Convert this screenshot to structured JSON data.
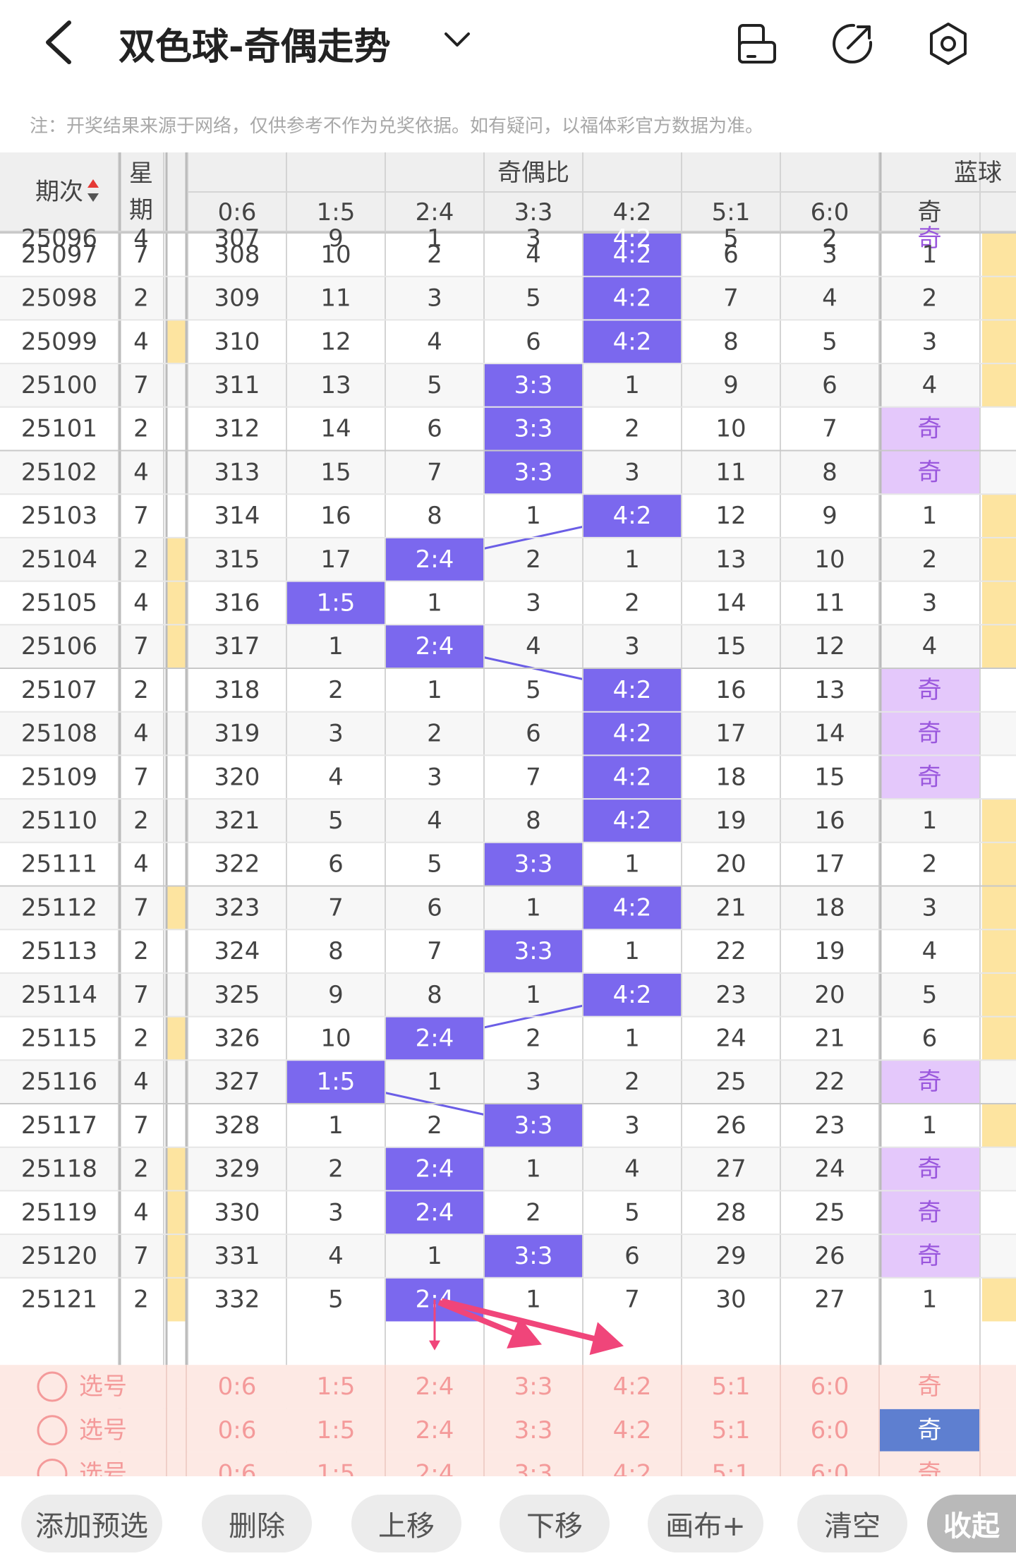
{
  "header": {
    "title": "双色球-奇偶走势",
    "icons": [
      "chevron-left-icon",
      "chevron-down-icon",
      "phone-rotate-icon",
      "share-icon",
      "settings-hexagon-icon"
    ]
  },
  "note": "注：开奖结果来源于网络，仅供参考不作为兑奖依据。如有疑问，以福体彩官方数据为准。",
  "table": {
    "col_issue": "期次",
    "col_week": [
      "星",
      "期"
    ],
    "group_ratio": "奇偶比",
    "group_blue": "蓝球",
    "ratio_cols": [
      "0:6",
      "1:5",
      "2:4",
      "3:3",
      "4:2",
      "5:1",
      "6:0"
    ],
    "blue_cols": [
      "奇"
    ],
    "rows": [
      {
        "issue": "25096",
        "week": "4",
        "cells": [
          "307",
          "9",
          "1",
          "3",
          "4:2",
          "5",
          "2"
        ],
        "hit": 4,
        "blue": "奇",
        "blue_hit": true
      },
      {
        "issue": "25097",
        "week": "7",
        "cells": [
          "308",
          "10",
          "2",
          "4",
          "4:2",
          "6",
          "3"
        ],
        "hit": 4,
        "blue": "1",
        "blue_hit": false
      },
      {
        "issue": "25098",
        "week": "2",
        "cells": [
          "309",
          "11",
          "3",
          "5",
          "4:2",
          "7",
          "4"
        ],
        "hit": 4,
        "blue": "2",
        "blue_hit": false
      },
      {
        "issue": "25099",
        "week": "4",
        "cells": [
          "310",
          "12",
          "4",
          "6",
          "4:2",
          "8",
          "5"
        ],
        "hit": 4,
        "blue": "3",
        "blue_hit": false
      },
      {
        "issue": "25100",
        "week": "7",
        "cells": [
          "311",
          "13",
          "5",
          "3:3",
          "1",
          "9",
          "6"
        ],
        "hit": 3,
        "blue": "4",
        "blue_hit": false
      },
      {
        "issue": "25101",
        "week": "2",
        "cells": [
          "312",
          "14",
          "6",
          "3:3",
          "2",
          "10",
          "7"
        ],
        "hit": 3,
        "blue": "奇",
        "blue_hit": true
      },
      {
        "issue": "25102",
        "week": "4",
        "cells": [
          "313",
          "15",
          "7",
          "3:3",
          "3",
          "11",
          "8"
        ],
        "hit": 3,
        "blue": "奇",
        "blue_hit": true
      },
      {
        "issue": "25103",
        "week": "7",
        "cells": [
          "314",
          "16",
          "8",
          "1",
          "4:2",
          "12",
          "9"
        ],
        "hit": 4,
        "blue": "1",
        "blue_hit": false
      },
      {
        "issue": "25104",
        "week": "2",
        "cells": [
          "315",
          "17",
          "2:4",
          "2",
          "1",
          "13",
          "10"
        ],
        "hit": 2,
        "blue": "2",
        "blue_hit": false
      },
      {
        "issue": "25105",
        "week": "4",
        "cells": [
          "316",
          "1:5",
          "1",
          "3",
          "2",
          "14",
          "11"
        ],
        "hit": 1,
        "blue": "3",
        "blue_hit": false
      },
      {
        "issue": "25106",
        "week": "7",
        "cells": [
          "317",
          "1",
          "2:4",
          "4",
          "3",
          "15",
          "12"
        ],
        "hit": 2,
        "blue": "4",
        "blue_hit": false
      },
      {
        "issue": "25107",
        "week": "2",
        "cells": [
          "318",
          "2",
          "1",
          "5",
          "4:2",
          "16",
          "13"
        ],
        "hit": 4,
        "blue": "奇",
        "blue_hit": true
      },
      {
        "issue": "25108",
        "week": "4",
        "cells": [
          "319",
          "3",
          "2",
          "6",
          "4:2",
          "17",
          "14"
        ],
        "hit": 4,
        "blue": "奇",
        "blue_hit": true
      },
      {
        "issue": "25109",
        "week": "7",
        "cells": [
          "320",
          "4",
          "3",
          "7",
          "4:2",
          "18",
          "15"
        ],
        "hit": 4,
        "blue": "奇",
        "blue_hit": true
      },
      {
        "issue": "25110",
        "week": "2",
        "cells": [
          "321",
          "5",
          "4",
          "8",
          "4:2",
          "19",
          "16"
        ],
        "hit": 4,
        "blue": "1",
        "blue_hit": false
      },
      {
        "issue": "25111",
        "week": "4",
        "cells": [
          "322",
          "6",
          "5",
          "3:3",
          "1",
          "20",
          "17"
        ],
        "hit": 3,
        "blue": "2",
        "blue_hit": false
      },
      {
        "issue": "25112",
        "week": "7",
        "cells": [
          "323",
          "7",
          "6",
          "1",
          "4:2",
          "21",
          "18"
        ],
        "hit": 4,
        "blue": "3",
        "blue_hit": false
      },
      {
        "issue": "25113",
        "week": "2",
        "cells": [
          "324",
          "8",
          "7",
          "3:3",
          "1",
          "22",
          "19"
        ],
        "hit": 3,
        "blue": "4",
        "blue_hit": false
      },
      {
        "issue": "25114",
        "week": "7",
        "cells": [
          "325",
          "9",
          "8",
          "1",
          "4:2",
          "23",
          "20"
        ],
        "hit": 4,
        "blue": "5",
        "blue_hit": false
      },
      {
        "issue": "25115",
        "week": "2",
        "cells": [
          "326",
          "10",
          "2:4",
          "2",
          "1",
          "24",
          "21"
        ],
        "hit": 2,
        "blue": "6",
        "blue_hit": false
      },
      {
        "issue": "25116",
        "week": "4",
        "cells": [
          "327",
          "1:5",
          "1",
          "3",
          "2",
          "25",
          "22"
        ],
        "hit": 1,
        "blue": "奇",
        "blue_hit": true
      },
      {
        "issue": "25117",
        "week": "7",
        "cells": [
          "328",
          "1",
          "2",
          "3:3",
          "3",
          "26",
          "23"
        ],
        "hit": 3,
        "blue": "1",
        "blue_hit": false
      },
      {
        "issue": "25118",
        "week": "2",
        "cells": [
          "329",
          "2",
          "2:4",
          "1",
          "4",
          "27",
          "24"
        ],
        "hit": 2,
        "blue": "奇",
        "blue_hit": true
      },
      {
        "issue": "25119",
        "week": "4",
        "cells": [
          "330",
          "3",
          "2:4",
          "2",
          "5",
          "28",
          "25"
        ],
        "hit": 2,
        "blue": "奇",
        "blue_hit": true
      },
      {
        "issue": "25120",
        "week": "7",
        "cells": [
          "331",
          "4",
          "1",
          "3:3",
          "6",
          "29",
          "26"
        ],
        "hit": 3,
        "blue": "奇",
        "blue_hit": true
      },
      {
        "issue": "25121",
        "week": "2",
        "cells": [
          "332",
          "5",
          "2:4",
          "1",
          "7",
          "30",
          "27"
        ],
        "hit": 2,
        "blue": "1",
        "blue_hit": false
      }
    ],
    "yellow_rows_left": [
      3,
      8,
      9,
      10,
      16,
      19,
      22,
      23,
      24,
      25
    ],
    "yellow_rows_right": [
      1,
      2,
      3,
      4,
      7,
      8,
      9,
      10,
      14,
      15,
      16,
      17,
      18,
      19,
      21,
      25
    ]
  },
  "picks": {
    "label": "选号",
    "cells": [
      "0:6",
      "1:5",
      "2:4",
      "3:3",
      "4:2",
      "5:1",
      "6:0"
    ],
    "blue": "奇",
    "rows": 3,
    "selected_blue_row": 1
  },
  "toolbar": {
    "buttons": [
      "添加预选",
      "删除",
      "上移",
      "下移",
      "画布+",
      "清空",
      "收起"
    ]
  },
  "colors": {
    "hit": "#7b68ee",
    "blue_hit": "#e4c8fb",
    "blue_hit_text": "#9a57dd",
    "yellow": "#fde4a0",
    "pick_bg": "#fde9e4",
    "pick_text": "#f49a9a",
    "selected_blue": "#5e7fd0",
    "line": "#6b5ee6",
    "arrow": "#f0457a"
  }
}
